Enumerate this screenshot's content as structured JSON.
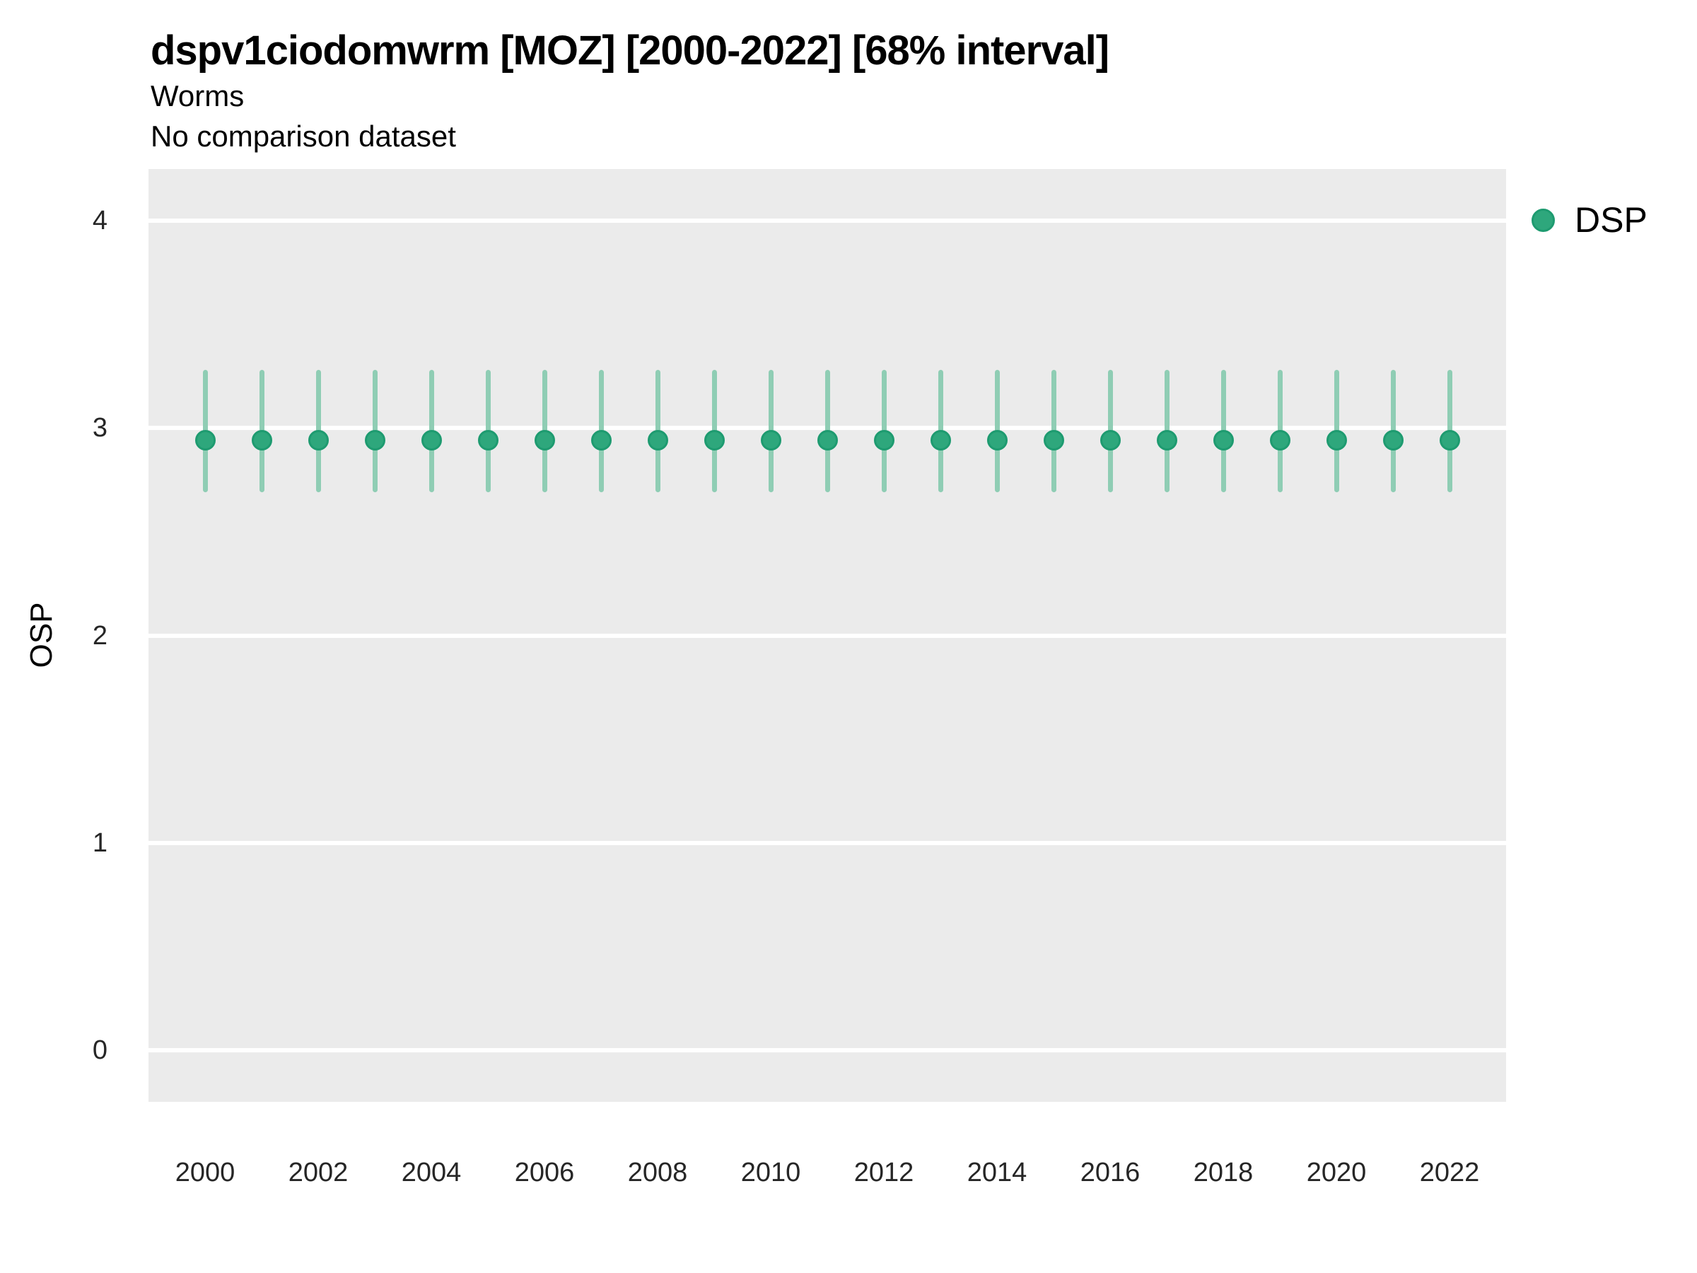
{
  "header": {
    "title": "dspv1ciodomwrm [MOZ] [2000-2022] [68% interval]",
    "subtitle": "Worms",
    "comparison_note": "No comparison dataset"
  },
  "legend": {
    "position": "right",
    "items": [
      {
        "label": "DSP",
        "marker": "circle-icon",
        "color": "#2EA77C"
      }
    ]
  },
  "colors": {
    "point_fill": "#2EA77C",
    "point_stroke": "#1E9B70",
    "interval_line": "#8FCDB4",
    "panel_bg": "#EBEBEB",
    "gridline": "#FFFFFF",
    "text": "#000000",
    "tick_text": "#262626"
  },
  "chart_data": {
    "type": "scatter",
    "subtype": "pointrange",
    "title": "dspv1ciodomwrm [MOZ] [2000-2022] [68% interval]",
    "subtitle": "Worms",
    "note": "No comparison dataset",
    "xlabel": "",
    "ylabel": "OSP",
    "interval": "68%",
    "grid": "major-horizontal-white",
    "legend_position": "right",
    "xlim": [
      1999,
      2023
    ],
    "ylim": [
      -0.25,
      4.25
    ],
    "y_ticks": [
      4,
      3,
      2,
      1,
      0
    ],
    "x_ticks": [
      2000,
      2002,
      2004,
      2006,
      2008,
      2010,
      2012,
      2014,
      2016,
      2018,
      2020,
      2022
    ],
    "series": [
      {
        "name": "DSP",
        "x": [
          2000,
          2001,
          2002,
          2003,
          2004,
          2005,
          2006,
          2007,
          2008,
          2009,
          2010,
          2011,
          2012,
          2013,
          2014,
          2015,
          2016,
          2017,
          2018,
          2019,
          2020,
          2021,
          2022
        ],
        "y": [
          2.94,
          2.94,
          2.94,
          2.94,
          2.94,
          2.94,
          2.94,
          2.94,
          2.94,
          2.94,
          2.94,
          2.94,
          2.94,
          2.94,
          2.94,
          2.94,
          2.94,
          2.94,
          2.94,
          2.94,
          2.94,
          2.94,
          2.94
        ],
        "y_lower": [
          2.69,
          2.69,
          2.69,
          2.69,
          2.69,
          2.69,
          2.69,
          2.69,
          2.69,
          2.69,
          2.69,
          2.69,
          2.69,
          2.69,
          2.69,
          2.69,
          2.69,
          2.69,
          2.69,
          2.69,
          2.69,
          2.69,
          2.69
        ],
        "y_upper": [
          3.28,
          3.28,
          3.28,
          3.28,
          3.28,
          3.28,
          3.28,
          3.28,
          3.28,
          3.28,
          3.28,
          3.28,
          3.28,
          3.28,
          3.28,
          3.28,
          3.28,
          3.28,
          3.28,
          3.28,
          3.28,
          3.28,
          3.28
        ]
      }
    ]
  }
}
